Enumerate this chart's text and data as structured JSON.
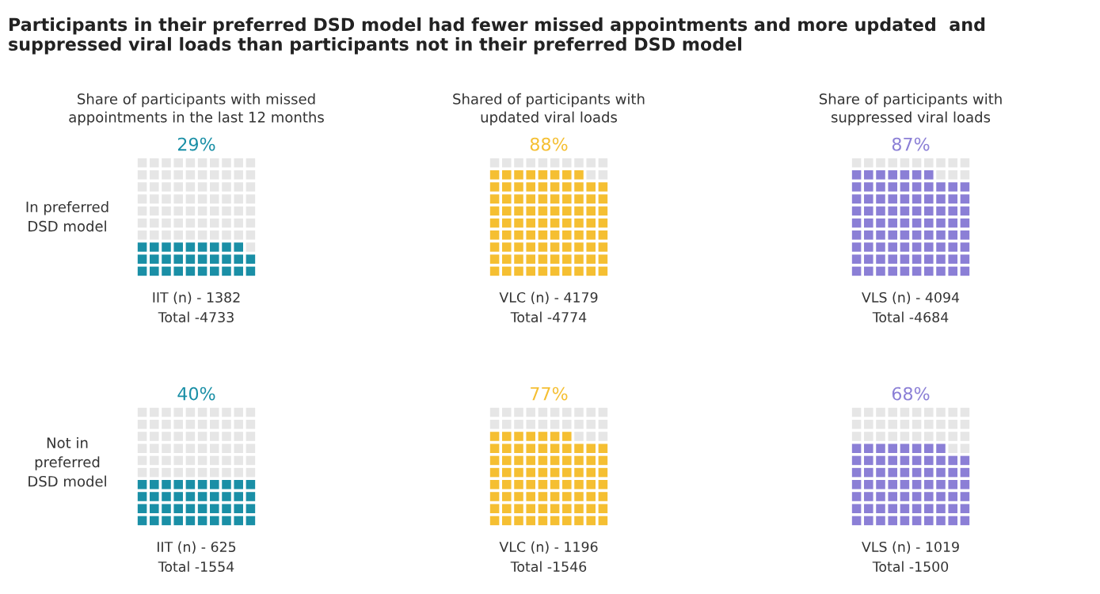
{
  "chart_data": [
    {
      "type": "other",
      "title": "Participants in their preferred DSD model had fewer missed appointments and more updated  and suppressed viral loads than participants not in their preferred DSD model",
      "annotations": [
        "In preferred\nDSD model",
        "Not in\npreferred\nDSD model"
      ]
    },
    {
      "type": "other",
      "title": "Share of participants with missed\nappointments in the last 12 months",
      "values": [
        29
      ],
      "value_labels": [
        "29%"
      ],
      "color": "#1a8fa6",
      "annotations": [
        "IIT (n) - 1382",
        "Total -4733"
      ]
    },
    {
      "type": "other",
      "title": "Shared of participants with\nupdated viral loads",
      "values": [
        88
      ],
      "value_labels": [
        "88%"
      ],
      "color": "#f5bf32",
      "annotations": [
        "VLC (n) - 4179",
        "Total -4774"
      ]
    },
    {
      "type": "other",
      "title": "Share of participants with\nsuppressed viral loads",
      "values": [
        87
      ],
      "value_labels": [
        "87%"
      ],
      "color": "#8b7fd6",
      "annotations": [
        "VLS (n) - 4094",
        "Total -4684"
      ]
    },
    {
      "type": "other",
      "values": [
        40
      ],
      "value_labels": [
        "40%"
      ],
      "color": "#1a8fa6",
      "annotations": [
        "IIT (n) - 625",
        "Total -1554"
      ]
    },
    {
      "type": "other",
      "values": [
        77
      ],
      "value_labels": [
        "77%"
      ],
      "color": "#f5bf32",
      "annotations": [
        "VLC (n) - 1196",
        "Total -1546"
      ]
    },
    {
      "type": "other",
      "values": [
        68
      ],
      "value_labels": [
        "68%"
      ],
      "color": "#8b7fd6",
      "annotations": [
        "VLS (n) - 1019",
        "Total -1500"
      ]
    }
  ]
}
